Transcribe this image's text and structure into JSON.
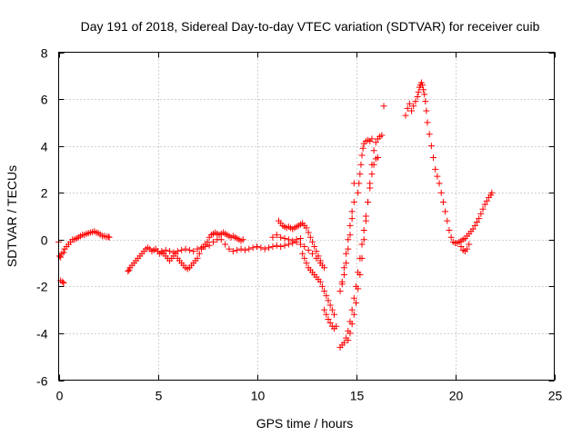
{
  "chart_data": {
    "type": "scatter",
    "title": "Day 191 of 2018, Sidereal Day-to-day VTEC variation (SDTVAR) for receiver cuib",
    "xlabel": "GPS time / hours",
    "ylabel": "SDTVAR / TECUs",
    "xlim": [
      0,
      25
    ],
    "ylim": [
      -6,
      8
    ],
    "xticks": [
      0,
      5,
      10,
      15,
      20,
      25
    ],
    "yticks": [
      -6,
      -4,
      -2,
      0,
      2,
      4,
      6,
      8
    ],
    "grid": true,
    "marker": "+",
    "colors": {
      "marker": "#ff0000",
      "grid": "#a0a0a0",
      "axis": "#000000"
    },
    "series": [
      {
        "name": "SDTVAR",
        "points": [
          [
            0.0,
            -0.1
          ],
          [
            0.05,
            -0.7
          ],
          [
            0.1,
            -0.75
          ],
          [
            0.1,
            -1.75
          ],
          [
            0.2,
            -1.8
          ],
          [
            0.25,
            -1.85
          ],
          [
            0.15,
            -0.6
          ],
          [
            0.25,
            -0.55
          ],
          [
            0.3,
            -0.4
          ],
          [
            0.4,
            -0.3
          ],
          [
            0.5,
            -0.2
          ],
          [
            0.6,
            -0.1
          ],
          [
            0.7,
            0.0
          ],
          [
            0.8,
            0.0
          ],
          [
            0.9,
            0.05
          ],
          [
            1.0,
            0.1
          ],
          [
            1.1,
            0.15
          ],
          [
            1.2,
            0.2
          ],
          [
            1.3,
            0.2
          ],
          [
            1.4,
            0.25
          ],
          [
            1.5,
            0.28
          ],
          [
            1.6,
            0.3
          ],
          [
            1.7,
            0.32
          ],
          [
            1.8,
            0.35
          ],
          [
            1.9,
            0.3
          ],
          [
            2.0,
            0.28
          ],
          [
            2.1,
            0.22
          ],
          [
            2.2,
            0.15
          ],
          [
            2.3,
            0.15
          ],
          [
            2.4,
            0.12
          ],
          [
            2.5,
            0.12
          ],
          [
            2.55,
            0.1
          ],
          [
            3.5,
            -1.35
          ],
          [
            3.55,
            -1.3
          ],
          [
            3.6,
            -1.2
          ],
          [
            3.7,
            -1.1
          ],
          [
            3.8,
            -1.0
          ],
          [
            3.9,
            -0.9
          ],
          [
            4.0,
            -0.8
          ],
          [
            4.1,
            -0.7
          ],
          [
            4.2,
            -0.6
          ],
          [
            4.3,
            -0.5
          ],
          [
            4.4,
            -0.4
          ],
          [
            4.5,
            -0.35
          ],
          [
            4.6,
            -0.4
          ],
          [
            4.7,
            -0.5
          ],
          [
            4.8,
            -0.45
          ],
          [
            4.9,
            -0.4
          ],
          [
            5.0,
            -0.5
          ],
          [
            5.1,
            -0.6
          ],
          [
            5.2,
            -0.55
          ],
          [
            5.3,
            -0.6
          ],
          [
            5.4,
            -0.7
          ],
          [
            5.5,
            -0.8
          ],
          [
            5.6,
            -0.9
          ],
          [
            5.7,
            -0.8
          ],
          [
            5.8,
            -0.7
          ],
          [
            5.9,
            -0.6
          ],
          [
            6.0,
            -0.8
          ],
          [
            6.1,
            -0.9
          ],
          [
            6.2,
            -1.0
          ],
          [
            6.3,
            -1.1
          ],
          [
            6.4,
            -1.2
          ],
          [
            6.5,
            -1.25
          ],
          [
            6.6,
            -1.2
          ],
          [
            6.7,
            -1.1
          ],
          [
            6.8,
            -1.0
          ],
          [
            6.9,
            -0.9
          ],
          [
            7.0,
            -0.8
          ],
          [
            7.1,
            -0.6
          ],
          [
            7.2,
            -0.4
          ],
          [
            7.3,
            -0.3
          ],
          [
            7.4,
            -0.2
          ],
          [
            7.5,
            -0.1
          ],
          [
            7.6,
            0.1
          ],
          [
            7.7,
            0.2
          ],
          [
            7.8,
            0.25
          ],
          [
            7.9,
            0.3
          ],
          [
            8.0,
            0.25
          ],
          [
            8.1,
            0.2
          ],
          [
            8.2,
            0.25
          ],
          [
            8.3,
            0.3
          ],
          [
            8.4,
            0.25
          ],
          [
            8.5,
            0.2
          ],
          [
            8.6,
            0.15
          ],
          [
            8.7,
            0.1
          ],
          [
            8.8,
            0.15
          ],
          [
            8.9,
            0.1
          ],
          [
            9.0,
            0.05
          ],
          [
            9.1,
            0.0
          ],
          [
            9.2,
            -0.05
          ],
          [
            9.3,
            0.0
          ],
          [
            5.2,
            -0.5
          ],
          [
            5.4,
            -0.45
          ],
          [
            5.6,
            -0.5
          ],
          [
            5.8,
            -0.55
          ],
          [
            6.0,
            -0.5
          ],
          [
            6.2,
            -0.45
          ],
          [
            6.4,
            -0.4
          ],
          [
            6.6,
            -0.45
          ],
          [
            6.8,
            -0.5
          ],
          [
            7.0,
            -0.4
          ],
          [
            7.2,
            -0.35
          ],
          [
            7.4,
            -0.3
          ],
          [
            7.6,
            -0.25
          ],
          [
            7.8,
            -0.1
          ],
          [
            8.0,
            0.0
          ],
          [
            8.2,
            0.0
          ],
          [
            8.4,
            -0.2
          ],
          [
            8.6,
            -0.4
          ],
          [
            8.8,
            -0.5
          ],
          [
            9.0,
            -0.45
          ],
          [
            9.2,
            -0.4
          ],
          [
            9.4,
            -0.45
          ],
          [
            9.6,
            -0.4
          ],
          [
            9.8,
            -0.35
          ],
          [
            10.0,
            -0.3
          ],
          [
            10.2,
            -0.35
          ],
          [
            10.4,
            -0.4
          ],
          [
            10.6,
            -0.35
          ],
          [
            10.8,
            -0.3
          ],
          [
            11.0,
            -0.25
          ],
          [
            11.2,
            -0.3
          ],
          [
            11.4,
            -0.25
          ],
          [
            11.6,
            -0.2
          ],
          [
            11.8,
            -0.15
          ],
          [
            12.0,
            -0.1
          ],
          [
            12.2,
            -0.2
          ],
          [
            12.4,
            -0.3
          ],
          [
            12.6,
            -0.45
          ],
          [
            12.8,
            -0.6
          ],
          [
            13.0,
            -0.8
          ],
          [
            13.2,
            -1.0
          ],
          [
            13.4,
            -1.2
          ],
          [
            10.8,
            0.1
          ],
          [
            11.0,
            0.2
          ],
          [
            11.2,
            0.1
          ],
          [
            11.4,
            0.05
          ],
          [
            11.6,
            0.0
          ],
          [
            11.8,
            -0.05
          ],
          [
            12.0,
            0.0
          ],
          [
            12.2,
            0.05
          ],
          [
            11.1,
            0.8
          ],
          [
            11.2,
            0.7
          ],
          [
            11.3,
            0.6
          ],
          [
            11.4,
            0.55
          ],
          [
            11.5,
            0.5
          ],
          [
            11.6,
            0.55
          ],
          [
            11.7,
            0.5
          ],
          [
            11.8,
            0.45
          ],
          [
            11.9,
            0.5
          ],
          [
            12.0,
            0.55
          ],
          [
            12.1,
            0.6
          ],
          [
            12.2,
            0.65
          ],
          [
            12.3,
            0.7
          ],
          [
            12.4,
            0.6
          ],
          [
            12.5,
            0.5
          ],
          [
            12.6,
            0.3
          ],
          [
            12.7,
            0.1
          ],
          [
            12.8,
            -0.1
          ],
          [
            12.9,
            -0.3
          ],
          [
            13.0,
            -0.5
          ],
          [
            13.1,
            -0.7
          ],
          [
            13.2,
            -0.9
          ],
          [
            13.3,
            -1.1
          ],
          [
            12.3,
            -0.6
          ],
          [
            12.4,
            -0.8
          ],
          [
            12.5,
            -1.0
          ],
          [
            12.6,
            -1.2
          ],
          [
            12.7,
            -1.3
          ],
          [
            12.8,
            -1.4
          ],
          [
            12.9,
            -1.5
          ],
          [
            13.0,
            -1.6
          ],
          [
            13.1,
            -1.7
          ],
          [
            13.2,
            -1.8
          ],
          [
            13.3,
            -2.0
          ],
          [
            13.4,
            -2.2
          ],
          [
            13.5,
            -2.4
          ],
          [
            13.6,
            -2.6
          ],
          [
            13.7,
            -2.8
          ],
          [
            13.8,
            -3.0
          ],
          [
            13.9,
            -3.2
          ],
          [
            13.4,
            -3.0
          ],
          [
            13.5,
            -3.2
          ],
          [
            13.6,
            -3.4
          ],
          [
            13.7,
            -3.55
          ],
          [
            13.8,
            -3.7
          ],
          [
            13.9,
            -3.8
          ],
          [
            14.0,
            -3.7
          ],
          [
            14.2,
            -4.6
          ],
          [
            14.3,
            -4.5
          ],
          [
            14.4,
            -4.4
          ],
          [
            14.5,
            -4.2
          ],
          [
            14.6,
            -3.9
          ],
          [
            14.7,
            -3.5
          ],
          [
            14.8,
            -3.0
          ],
          [
            14.9,
            -2.5
          ],
          [
            15.0,
            -2.0
          ],
          [
            15.1,
            -1.4
          ],
          [
            15.2,
            -0.8
          ],
          [
            15.3,
            -0.2
          ],
          [
            15.4,
            0.4
          ],
          [
            15.5,
            1.0
          ],
          [
            15.6,
            1.6
          ],
          [
            15.7,
            2.2
          ],
          [
            15.8,
            2.8
          ],
          [
            15.9,
            3.2
          ],
          [
            16.0,
            3.45
          ],
          [
            16.1,
            3.5
          ],
          [
            14.2,
            -2.2
          ],
          [
            14.3,
            -1.9
          ],
          [
            14.4,
            -1.5
          ],
          [
            14.5,
            -1.0
          ],
          [
            14.6,
            -0.4
          ],
          [
            14.7,
            0.2
          ],
          [
            14.8,
            0.9
          ],
          [
            14.9,
            1.6
          ],
          [
            14.9,
            2.4
          ],
          [
            14.8,
            1.2
          ],
          [
            14.7,
            0.6
          ],
          [
            14.6,
            0.0
          ],
          [
            14.5,
            -0.6
          ],
          [
            14.4,
            -1.2
          ],
          [
            14.3,
            -1.8
          ],
          [
            14.6,
            -4.3
          ],
          [
            14.7,
            -4.0
          ],
          [
            14.8,
            -3.6
          ],
          [
            14.9,
            -3.2
          ],
          [
            15.0,
            -2.7
          ],
          [
            15.1,
            -2.1
          ],
          [
            15.2,
            -1.5
          ],
          [
            15.3,
            -0.8
          ],
          [
            15.4,
            0.0
          ],
          [
            15.5,
            0.8
          ],
          [
            15.6,
            1.6
          ],
          [
            15.7,
            2.4
          ],
          [
            15.8,
            3.2
          ],
          [
            15.9,
            3.8
          ],
          [
            16.0,
            4.15
          ],
          [
            16.1,
            4.3
          ],
          [
            16.2,
            4.4
          ],
          [
            16.3,
            4.45
          ],
          [
            15.1,
            2.0
          ],
          [
            15.15,
            2.4
          ],
          [
            15.2,
            2.8
          ],
          [
            15.25,
            3.2
          ],
          [
            15.3,
            3.6
          ],
          [
            15.35,
            3.9
          ],
          [
            15.4,
            4.1
          ],
          [
            15.5,
            4.2
          ],
          [
            15.6,
            4.25
          ],
          [
            15.7,
            4.2
          ],
          [
            15.8,
            4.3
          ],
          [
            16.4,
            5.7
          ],
          [
            17.5,
            5.3
          ],
          [
            17.6,
            5.6
          ],
          [
            17.7,
            5.8
          ],
          [
            17.8,
            5.5
          ],
          [
            17.9,
            5.7
          ],
          [
            18.0,
            5.9
          ],
          [
            18.1,
            6.1
          ],
          [
            18.15,
            6.3
          ],
          [
            18.2,
            6.5
          ],
          [
            18.25,
            6.6
          ],
          [
            18.3,
            6.7
          ],
          [
            18.35,
            6.6
          ],
          [
            18.4,
            6.4
          ],
          [
            18.45,
            6.2
          ],
          [
            18.5,
            5.9
          ],
          [
            18.55,
            5.5
          ],
          [
            18.6,
            5.0
          ],
          [
            18.7,
            4.5
          ],
          [
            18.8,
            4.0
          ],
          [
            18.9,
            3.5
          ],
          [
            19.0,
            3.0
          ],
          [
            19.1,
            2.7
          ],
          [
            19.2,
            2.4
          ],
          [
            19.3,
            2.0
          ],
          [
            19.4,
            1.6
          ],
          [
            19.5,
            1.2
          ],
          [
            19.6,
            0.8
          ],
          [
            19.7,
            0.4
          ],
          [
            19.8,
            0.1
          ],
          [
            19.9,
            -0.1
          ],
          [
            20.0,
            -0.15
          ],
          [
            20.1,
            -0.15
          ],
          [
            20.2,
            -0.1
          ],
          [
            20.3,
            -0.05
          ],
          [
            20.4,
            0.0
          ],
          [
            20.5,
            0.05
          ],
          [
            20.6,
            0.15
          ],
          [
            20.7,
            0.25
          ],
          [
            20.8,
            0.35
          ],
          [
            20.9,
            0.45
          ],
          [
            21.0,
            0.6
          ],
          [
            21.1,
            0.75
          ],
          [
            21.2,
            0.9
          ],
          [
            21.3,
            1.1
          ],
          [
            21.4,
            1.3
          ],
          [
            21.5,
            1.5
          ],
          [
            21.6,
            1.65
          ],
          [
            21.7,
            1.8
          ],
          [
            21.8,
            1.9
          ],
          [
            21.85,
            2.0
          ],
          [
            20.3,
            -0.3
          ],
          [
            20.4,
            -0.45
          ],
          [
            20.5,
            -0.5
          ],
          [
            20.6,
            -0.4
          ],
          [
            20.7,
            -0.2
          ]
        ]
      }
    ]
  }
}
